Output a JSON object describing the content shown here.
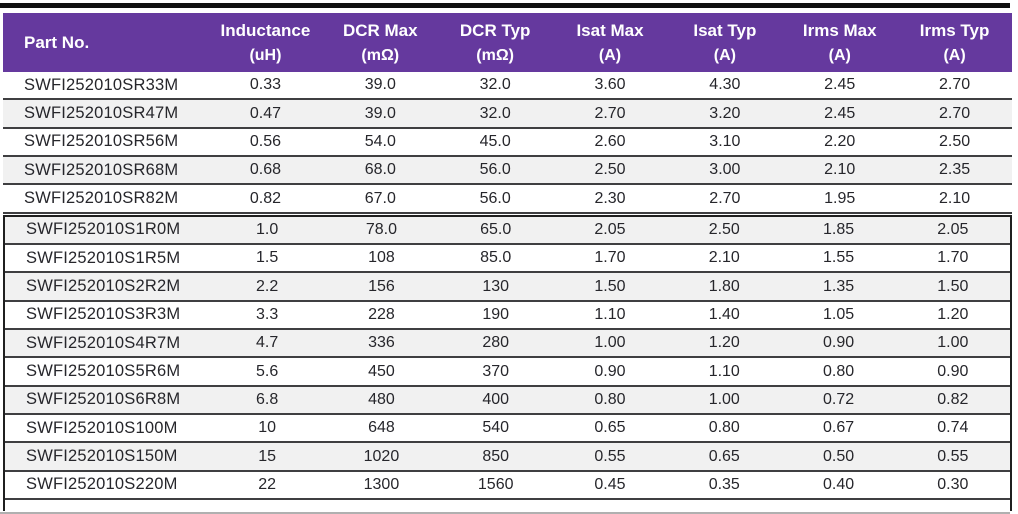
{
  "colors": {
    "header_bg": "#65399e",
    "header_text": "#ffffff",
    "stripe_bg": "#f1f1f1",
    "grid_line": "#3f3f41",
    "block_border": "#1f1f1f",
    "body_text": "#26262b"
  },
  "table": {
    "columns": [
      {
        "label": "Part No.",
        "unit": ""
      },
      {
        "label": "Inductance",
        "unit": "(uH)"
      },
      {
        "label": "DCR Max",
        "unit": "(mΩ)"
      },
      {
        "label": "DCR Typ",
        "unit": "(mΩ)"
      },
      {
        "label": "Isat Max",
        "unit": "(A)"
      },
      {
        "label": "Isat Typ",
        "unit": "(A)"
      },
      {
        "label": "Irms Max",
        "unit": "(A)"
      },
      {
        "label": "Irms Typ",
        "unit": "(A)"
      }
    ],
    "rows": [
      [
        "SWFI252010SR33M",
        "0.33",
        "39.0",
        "32.0",
        "3.60",
        "4.30",
        "2.45",
        "2.70"
      ],
      [
        "SWFI252010SR47M",
        "0.47",
        "39.0",
        "32.0",
        "2.70",
        "3.20",
        "2.45",
        "2.70"
      ],
      [
        "SWFI252010SR56M",
        "0.56",
        "54.0",
        "45.0",
        "2.60",
        "3.10",
        "2.20",
        "2.50"
      ],
      [
        "SWFI252010SR68M",
        "0.68",
        "68.0",
        "56.0",
        "2.50",
        "3.00",
        "2.10",
        "2.35"
      ],
      [
        "SWFI252010SR82M",
        "0.82",
        "67.0",
        "56.0",
        "2.30",
        "2.70",
        "1.95",
        "2.10"
      ],
      [
        "SWFI252010S1R0M",
        "1.0",
        "78.0",
        "65.0",
        "2.05",
        "2.50",
        "1.85",
        "2.05"
      ],
      [
        "SWFI252010S1R5M",
        "1.5",
        "108",
        "85.0",
        "1.70",
        "2.10",
        "1.55",
        "1.70"
      ],
      [
        "SWFI252010S2R2M",
        "2.2",
        "156",
        "130",
        "1.50",
        "1.80",
        "1.35",
        "1.50"
      ],
      [
        "SWFI252010S3R3M",
        "3.3",
        "228",
        "190",
        "1.10",
        "1.40",
        "1.05",
        "1.20"
      ],
      [
        "SWFI252010S4R7M",
        "4.7",
        "336",
        "280",
        "1.00",
        "1.20",
        "0.90",
        "1.00"
      ],
      [
        "SWFI252010S5R6M",
        "5.6",
        "450",
        "370",
        "0.90",
        "1.10",
        "0.80",
        "0.90"
      ],
      [
        "SWFI252010S6R8M",
        "6.8",
        "480",
        "400",
        "0.80",
        "1.00",
        "0.72",
        "0.82"
      ],
      [
        "SWFI252010S100M",
        "10",
        "648",
        "540",
        "0.65",
        "0.80",
        "0.67",
        "0.74"
      ],
      [
        "SWFI252010S150M",
        "15",
        "1020",
        "850",
        "0.55",
        "0.65",
        "0.50",
        "0.55"
      ],
      [
        "SWFI252010S220M",
        "22",
        "1300",
        "1560",
        "0.45",
        "0.35",
        "0.40",
        "0.30"
      ]
    ],
    "upper_block_row_count": 5
  }
}
